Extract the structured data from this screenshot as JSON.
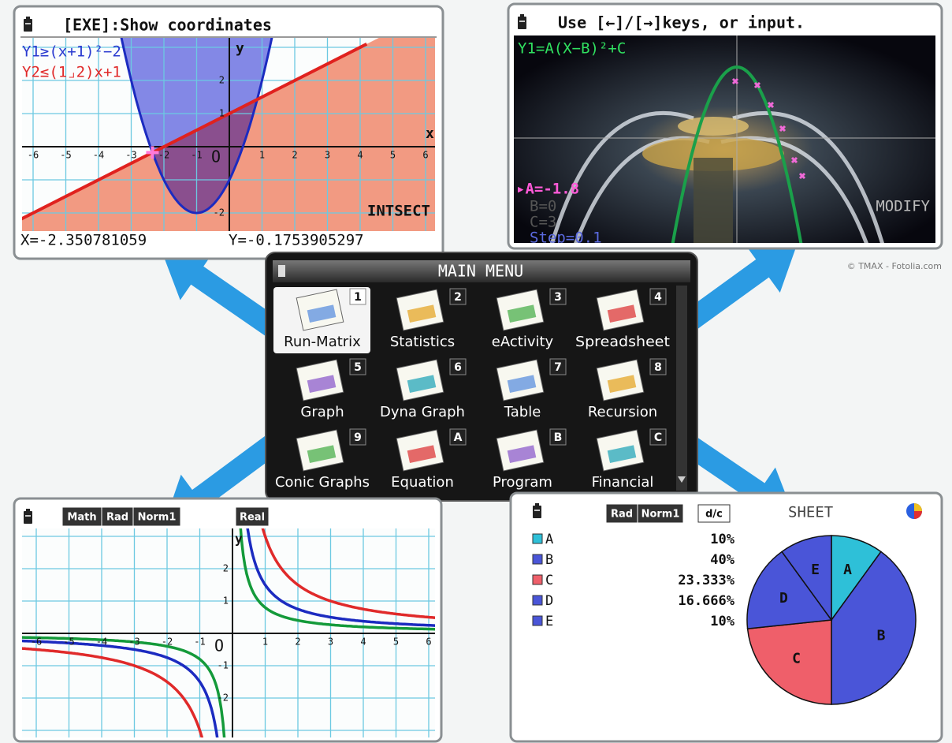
{
  "top_left_screen": {
    "header": "[EXE]:Show coordinates",
    "formulas": [
      "Y1≥(x+1)²−2",
      "Y2≤(1⌟2)x+1"
    ],
    "axis_x": "x",
    "axis_y": "y",
    "origin": "O",
    "x_ticks": [
      "-6",
      "-5",
      "-4",
      "-3",
      "-2",
      "-1",
      "1",
      "2",
      "3",
      "4",
      "5",
      "6"
    ],
    "y_ticks": [
      "2",
      "1",
      "-2"
    ],
    "mode": "INTSECT",
    "x_coord": "X=-2.350781059",
    "y_coord": "Y=-0.1753905297"
  },
  "top_right_screen": {
    "header": "Use [←]/[→]keys, or input.",
    "formula": "Y1=A(X−B)²+C",
    "params": [
      "▸A=-1.8",
      "B=0",
      "C=3",
      "Step=0.1"
    ],
    "softkey": "MODIFY"
  },
  "credit": "© TMAX - Fotolia.com",
  "main_menu": {
    "title": "MAIN MENU",
    "items": [
      {
        "label": "Run-Matrix",
        "key": "1"
      },
      {
        "label": "Statistics",
        "key": "2"
      },
      {
        "label": "eActivity",
        "key": "3"
      },
      {
        "label": "Spreadsheet",
        "key": "4"
      },
      {
        "label": "Graph",
        "key": "5"
      },
      {
        "label": "Dyna Graph",
        "key": "6"
      },
      {
        "label": "Table",
        "key": "7"
      },
      {
        "label": "Recursion",
        "key": "8"
      },
      {
        "label": "Conic Graphs",
        "key": "9"
      },
      {
        "label": "Equation",
        "key": "A"
      },
      {
        "label": "Program",
        "key": "B"
      },
      {
        "label": "Financial",
        "key": "C"
      }
    ]
  },
  "bottom_left_screen": {
    "status": [
      "Math",
      "Rad",
      "Norm1",
      "Real"
    ],
    "axis_y": "y",
    "origin": "O",
    "x_ticks": [
      "-6",
      "-5",
      "-4",
      "-3",
      "-2",
      "-1",
      "1",
      "2",
      "3",
      "4",
      "5",
      "6"
    ],
    "y_ticks": [
      "2",
      "1",
      "-1",
      "-2"
    ]
  },
  "bottom_right_screen": {
    "status": [
      "Rad",
      "Norm1",
      "d/c"
    ],
    "title": "SHEET",
    "rows": [
      {
        "name": "A",
        "value": 10,
        "label": "10%"
      },
      {
        "name": "B",
        "value": 40,
        "label": "40%"
      },
      {
        "name": "C",
        "value": 23.333,
        "label": "23.333%"
      },
      {
        "name": "D",
        "value": 16.666,
        "label": "16.666%"
      },
      {
        "name": "E",
        "value": 10,
        "label": "10%"
      }
    ]
  }
}
